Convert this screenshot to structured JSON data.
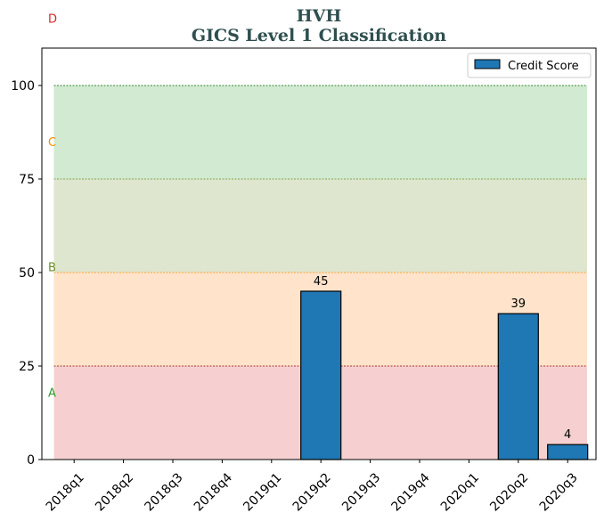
{
  "chart_data": {
    "type": "bar",
    "title": "HVH",
    "subtitle": "GICS Level 1 Classification",
    "categories": [
      "2018q1",
      "2018q2",
      "2018q3",
      "2018q4",
      "2019q1",
      "2019q2",
      "2019q3",
      "2019q4",
      "2020q1",
      "2020q2",
      "2020q3"
    ],
    "series": [
      {
        "name": "Credit Score",
        "values": [
          null,
          null,
          null,
          null,
          null,
          45,
          null,
          null,
          null,
          39,
          4
        ],
        "color": "#1f77b4"
      }
    ],
    "data_labels": [
      null,
      null,
      null,
      null,
      null,
      "45",
      null,
      null,
      null,
      "39",
      "4"
    ],
    "ylim": [
      0,
      110
    ],
    "yticks": [
      0,
      25,
      50,
      75,
      100
    ],
    "ytick_labels": [
      "0",
      "25",
      "50",
      "75",
      "100"
    ],
    "xlabel": "",
    "ylabel": "",
    "legend_position": "top-right",
    "bands": [
      {
        "label": "A",
        "from": 0,
        "to": 25,
        "fill": "#d62728",
        "line": "#8b0000",
        "label_color": "#2ca02c",
        "label_at": 18
      },
      {
        "label": "B",
        "from": 25,
        "to": 50,
        "fill": "#ff7f0e",
        "line": "#ff8c00",
        "label_color": "#6b8e23",
        "label_at": 51.5
      },
      {
        "label": "C",
        "from": 50,
        "to": 75,
        "fill": "#6b8e23",
        "line": "#6b8e23",
        "label_color": "#ff8c00",
        "label_at": 85
      },
      {
        "label": "D",
        "from": 75,
        "to": 100,
        "fill": "#2ca02c",
        "line": "#006400",
        "label_color": "#d62728",
        "label_at": 118
      }
    ]
  }
}
